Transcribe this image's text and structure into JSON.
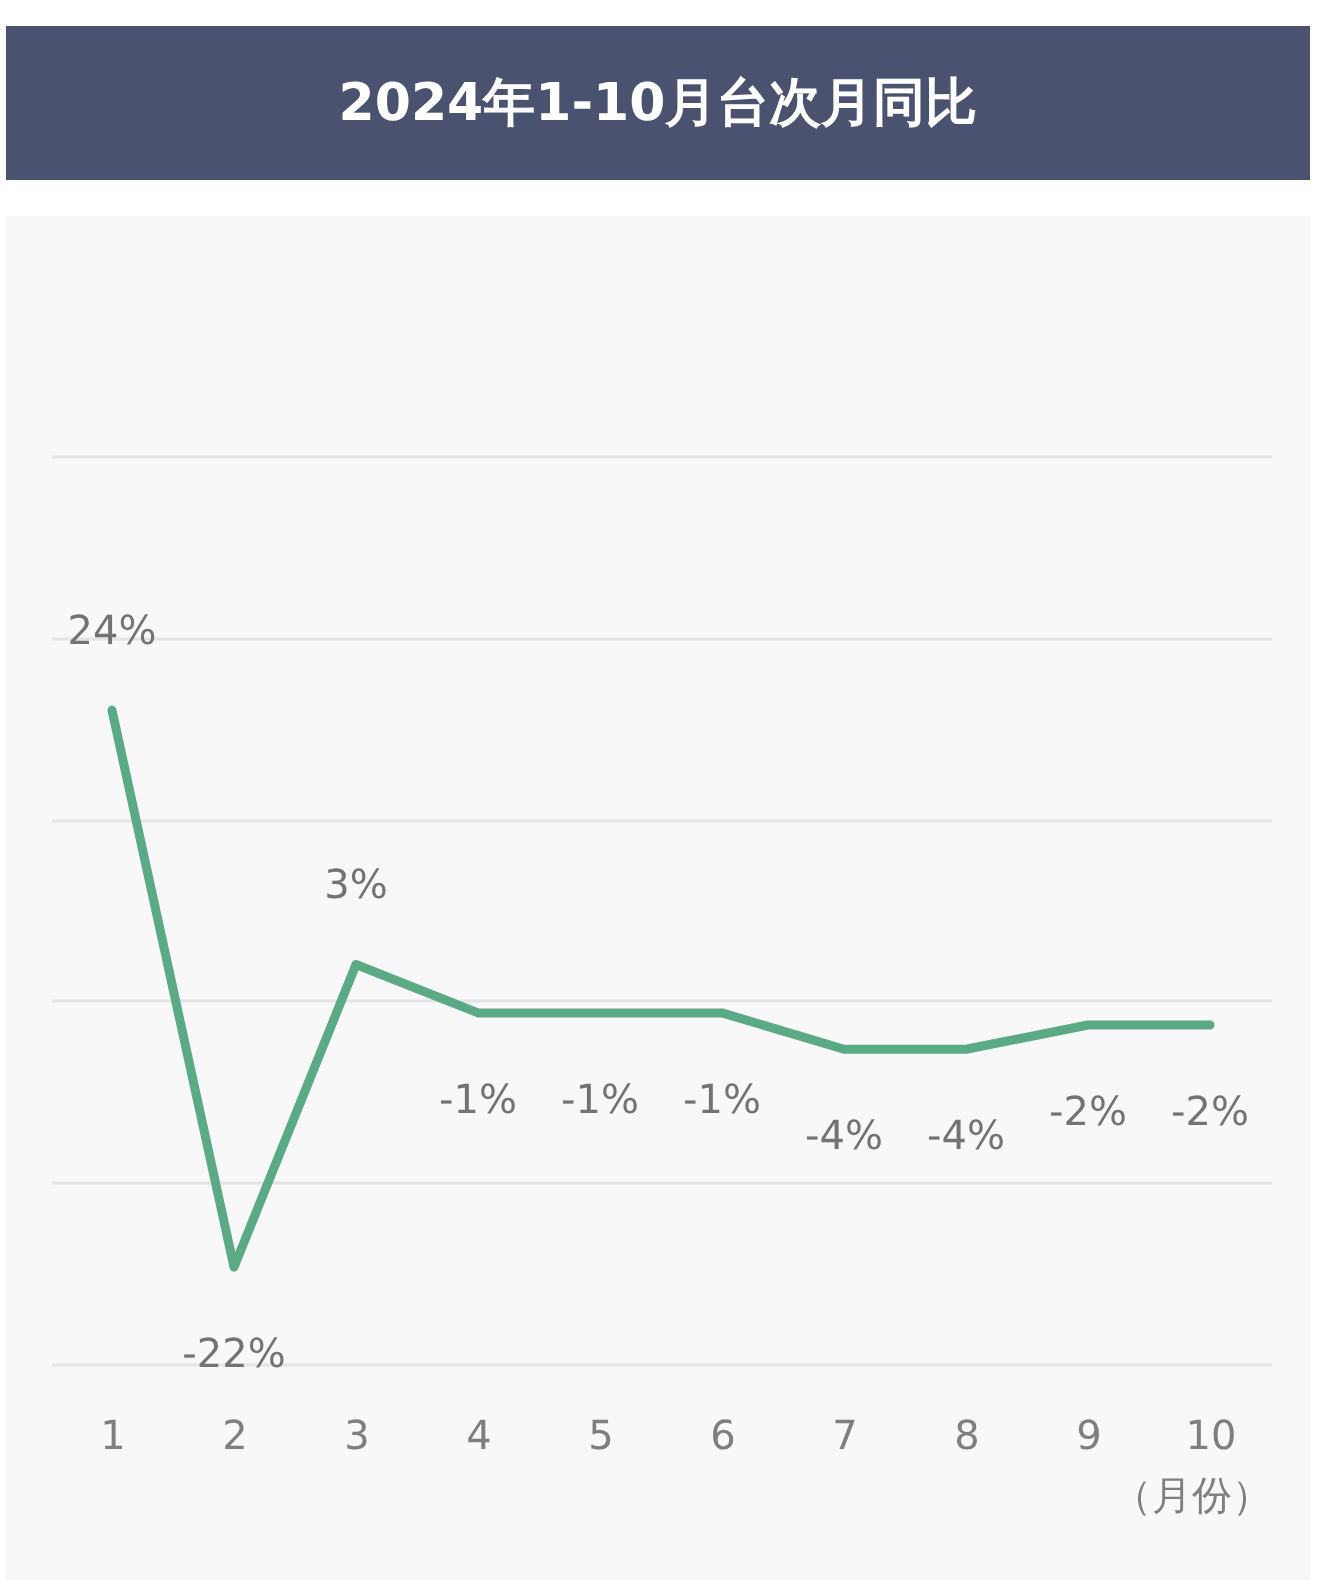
{
  "chart_data": {
    "type": "line",
    "title": "2024年1-10月台次月同比",
    "xlabel": "（月份）",
    "categories": [
      "1",
      "2",
      "3",
      "4",
      "5",
      "6",
      "7",
      "8",
      "9",
      "10"
    ],
    "values": [
      24,
      -22,
      3,
      -1,
      -1,
      -1,
      -4,
      -4,
      -2,
      -2
    ],
    "color": "#5baa86",
    "value_labels": [
      "24%",
      "-22%",
      "3%",
      "-1%",
      "-1%",
      "-1%",
      "-4%",
      "-4%",
      "-2%",
      "-2%"
    ],
    "ylim": [
      -30,
      45
    ],
    "yticks": [
      {
        "value": -30,
        "label": null
      },
      {
        "value": -15,
        "label": null
      },
      {
        "value": 0,
        "label": null
      },
      {
        "value": 15,
        "label": null
      },
      {
        "value": 30,
        "label": null
      },
      {
        "value": 45,
        "label": null
      }
    ],
    "grid": "y",
    "tick_labels": "x",
    "line_style": "solid"
  }
}
